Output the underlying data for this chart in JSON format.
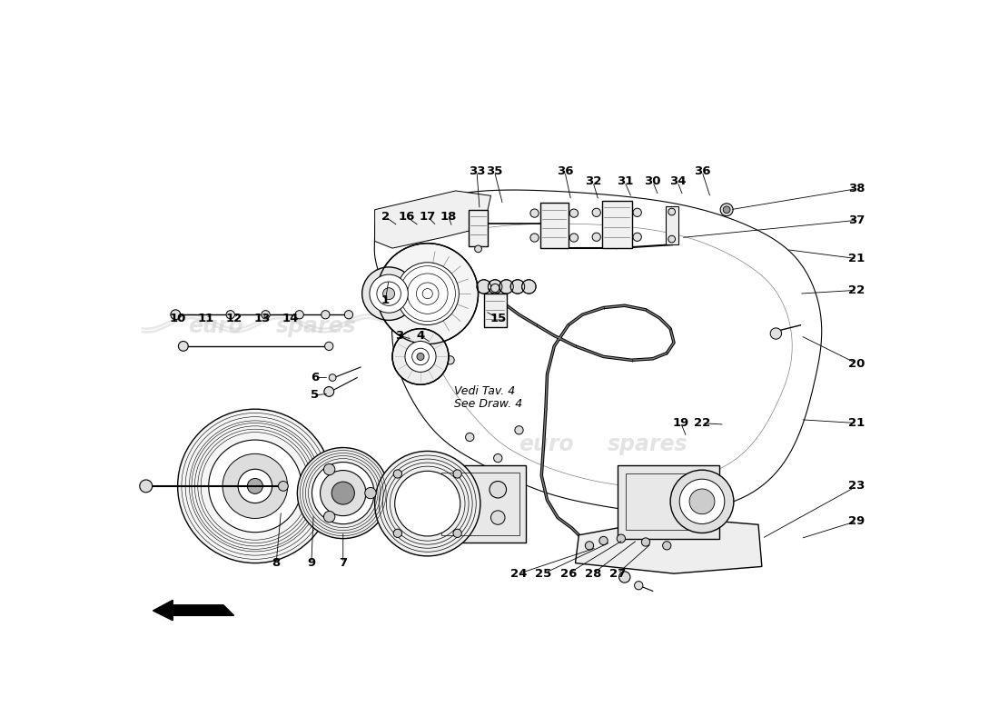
{
  "bg_color": "#ffffff",
  "fig_width": 11.0,
  "fig_height": 8.0,
  "dpi": 100,
  "labels": [
    [
      "1",
      370,
      305
    ],
    [
      "2",
      370,
      185
    ],
    [
      "3",
      390,
      355
    ],
    [
      "4",
      420,
      355
    ],
    [
      "5",
      270,
      440
    ],
    [
      "6",
      270,
      415
    ],
    [
      "7",
      310,
      680
    ],
    [
      "8",
      215,
      680
    ],
    [
      "9",
      265,
      680
    ],
    [
      "10",
      75,
      330
    ],
    [
      "11",
      115,
      330
    ],
    [
      "12",
      155,
      330
    ],
    [
      "13",
      195,
      330
    ],
    [
      "14",
      235,
      330
    ],
    [
      "15",
      530,
      330
    ],
    [
      "16",
      400,
      185
    ],
    [
      "17",
      430,
      185
    ],
    [
      "18",
      460,
      185
    ],
    [
      "19",
      790,
      480
    ],
    [
      "20",
      1040,
      395
    ],
    [
      "21",
      1040,
      245
    ],
    [
      "21",
      1040,
      480
    ],
    [
      "22",
      1040,
      290
    ],
    [
      "22",
      820,
      480
    ],
    [
      "23",
      1040,
      570
    ],
    [
      "24",
      560,
      695
    ],
    [
      "25",
      595,
      695
    ],
    [
      "26",
      630,
      695
    ],
    [
      "27",
      700,
      695
    ],
    [
      "28",
      665,
      695
    ],
    [
      "29",
      1040,
      620
    ],
    [
      "30",
      750,
      135
    ],
    [
      "31",
      710,
      135
    ],
    [
      "32",
      665,
      135
    ],
    [
      "33",
      500,
      120
    ],
    [
      "34",
      785,
      135
    ],
    [
      "35",
      525,
      120
    ],
    [
      "36",
      625,
      120
    ],
    [
      "36",
      820,
      120
    ],
    [
      "37",
      1040,
      190
    ],
    [
      "38",
      1040,
      145
    ]
  ]
}
